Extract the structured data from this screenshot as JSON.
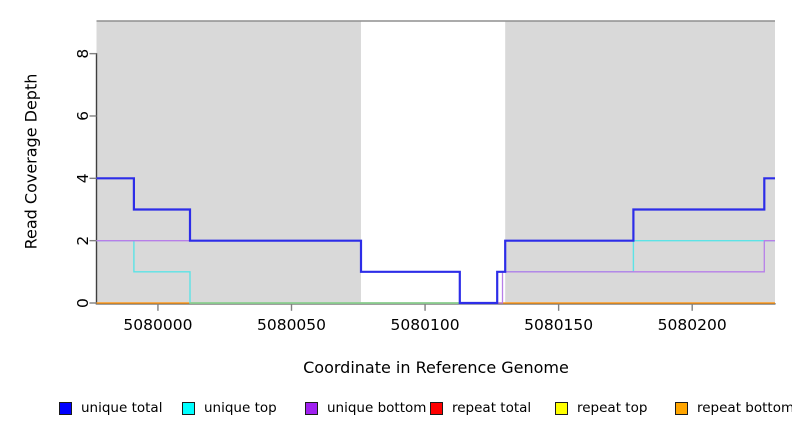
{
  "figure": {
    "x_title": "Coordinate in Reference Genome",
    "y_title": "Read Coverage Depth"
  },
  "legend": {
    "items": [
      {
        "label": "unique total",
        "color": "#0000FF"
      },
      {
        "label": "unique top",
        "color": "#00FFFF"
      },
      {
        "label": "unique bottom",
        "color": "#A020F0"
      },
      {
        "label": "repeat total",
        "color": "#FF0000"
      },
      {
        "label": "repeat top",
        "color": "#FFFF00"
      },
      {
        "label": "repeat bottom",
        "color": "#FFA500"
      }
    ]
  },
  "chart_data": {
    "type": "line",
    "step": true,
    "title": "",
    "xlabel": "Coordinate in Reference Genome",
    "ylabel": "Read Coverage Depth",
    "xlim": [
      5079977,
      5080231
    ],
    "ylim": [
      0,
      9
    ],
    "grid": false,
    "legend_position": "bottom",
    "x_ticks": [
      {
        "value": 5080000,
        "label": "5080000"
      },
      {
        "value": 5080050,
        "label": "5080050"
      },
      {
        "value": 5080100,
        "label": "5080100"
      },
      {
        "value": 5080150,
        "label": "5080150"
      },
      {
        "value": 5080200,
        "label": "5080200"
      }
    ],
    "y_ticks": [
      {
        "value": 0,
        "label": "0"
      },
      {
        "value": 2,
        "label": "2"
      },
      {
        "value": 4,
        "label": "4"
      },
      {
        "value": 6,
        "label": "6"
      },
      {
        "value": 8,
        "label": "8"
      }
    ],
    "shaded_regions": [
      {
        "x1": 5079977,
        "x2": 5080076,
        "fill": "#D9D9D9"
      },
      {
        "x1": 5080130,
        "x2": 5080231,
        "fill": "#D9D9D9"
      }
    ],
    "series": [
      {
        "name": "unique total",
        "line_color": "#2D2DE8",
        "line_width": 2.2,
        "points": [
          [
            5079977,
            4
          ],
          [
            5079991,
            4
          ],
          [
            5079991,
            3
          ],
          [
            5080012,
            3
          ],
          [
            5080012,
            2
          ],
          [
            5080076,
            2
          ],
          [
            5080076,
            1
          ],
          [
            5080113,
            1
          ],
          [
            5080113,
            0
          ],
          [
            5080127,
            0
          ],
          [
            5080127,
            1
          ],
          [
            5080130,
            1
          ],
          [
            5080130,
            2
          ],
          [
            5080178,
            2
          ],
          [
            5080178,
            3
          ],
          [
            5080227,
            3
          ],
          [
            5080227,
            4
          ],
          [
            5080231,
            4
          ]
        ]
      },
      {
        "name": "unique top",
        "line_color": "#5CE3E6",
        "line_width": 1.4,
        "points": [
          [
            5079977,
            2
          ],
          [
            5079991,
            2
          ],
          [
            5079991,
            1
          ],
          [
            5080012,
            1
          ],
          [
            5080012,
            0
          ],
          [
            5080127,
            0
          ],
          [
            5080127,
            1
          ],
          [
            5080178,
            1
          ],
          [
            5080178,
            2
          ],
          [
            5080231,
            2
          ]
        ]
      },
      {
        "name": "unique bottom",
        "line_color": "#B77FE8",
        "line_width": 1.3,
        "points": [
          [
            5079977,
            2
          ],
          [
            5080076,
            2
          ],
          [
            5080076,
            1
          ],
          [
            5080113,
            1
          ],
          [
            5080113,
            0
          ],
          [
            5080129,
            0
          ],
          [
            5080129,
            1
          ],
          [
            5080227,
            1
          ],
          [
            5080227,
            2
          ],
          [
            5080231,
            2
          ]
        ]
      },
      {
        "name": "repeat total",
        "line_color": "#DD0000",
        "line_width": 1.0,
        "points": [
          [
            5079977,
            0
          ],
          [
            5080231,
            0
          ]
        ]
      },
      {
        "name": "repeat top",
        "line_color": "#FFFF00",
        "line_width": 1.0,
        "points": [
          [
            5079977,
            0
          ],
          [
            5080231,
            0
          ]
        ]
      },
      {
        "name": "repeat bottom",
        "line_color": "#FF9C20",
        "line_width": 1.6,
        "points": [
          [
            5079977,
            0
          ],
          [
            5080231,
            0
          ]
        ]
      }
    ],
    "render_overlays": [
      {
        "name": "cyan-over-orange-blend",
        "line_color": "#8FD18F",
        "line_width": 1.4,
        "points": [
          [
            5080012,
            0
          ],
          [
            5080113,
            0
          ]
        ]
      }
    ],
    "paint_order": [
      "repeat total",
      "repeat top",
      "repeat bottom",
      "unique top",
      "cyan-over-orange-blend",
      "unique bottom",
      "unique total"
    ]
  }
}
